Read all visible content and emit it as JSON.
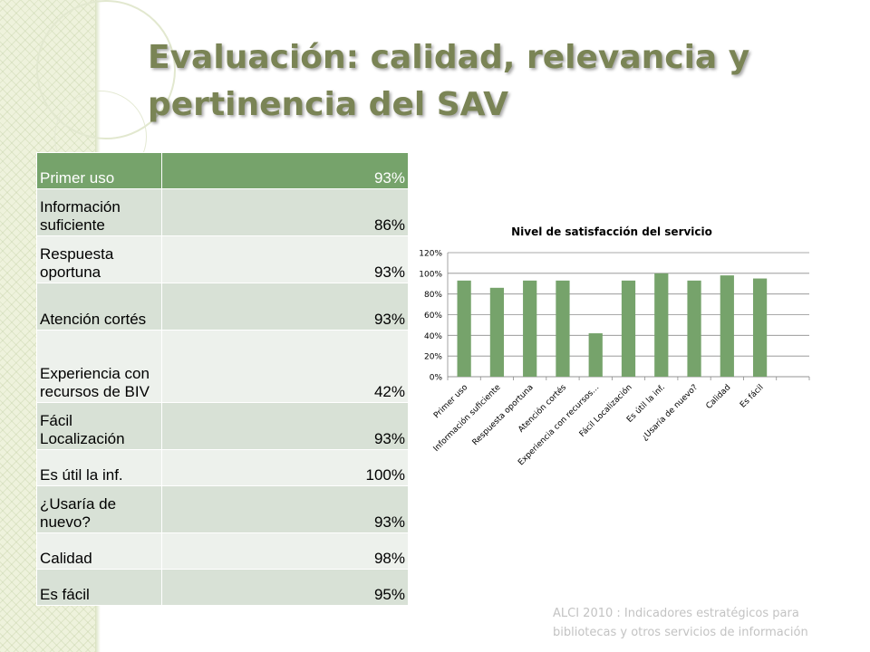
{
  "title": "Evaluación: calidad, relevancia y pertinencia del SAV",
  "footer": "ALCI 2010 : Indicadores estratégicos para bibliotecas y otros servicios de información",
  "colors": {
    "accent": "#76a36b",
    "title": "#7a8455",
    "bar": "#76a36b"
  },
  "table": {
    "rows": [
      {
        "label": "Primer uso",
        "value": "93%"
      },
      {
        "label": "Información suficiente",
        "value": "86%"
      },
      {
        "label": "Respuesta oportuna",
        "value": "93%"
      },
      {
        "label": "Atención cortés",
        "value": "93%"
      },
      {
        "label": "Experiencia con recursos de BIV",
        "value": "42%"
      },
      {
        "label": "Fácil Localización",
        "value": "93%"
      },
      {
        "label": "Es útil la inf.",
        "value": "100%"
      },
      {
        "label": "¿Usaría de nuevo?",
        "value": "93%"
      },
      {
        "label": "Calidad",
        "value": "98%"
      },
      {
        "label": "Es fácil",
        "value": "95%"
      }
    ]
  },
  "chart_data": {
    "type": "bar",
    "title": "Nivel de satisfacción del servicio",
    "categories": [
      "Primer uso",
      "Información suficiente",
      "Respuesta oportuna",
      "Atención cortés",
      "Experiencia con recursos…",
      "Fácil Localización",
      "Es útil la inf.",
      "¿Usaría de nuevo?",
      "Calidad",
      "Es fácil"
    ],
    "values": [
      0.93,
      0.86,
      0.93,
      0.93,
      0.42,
      0.93,
      1.0,
      0.93,
      0.98,
      0.95
    ],
    "ylim": [
      0,
      1.2
    ],
    "yticks": [
      "0%",
      "20%",
      "40%",
      "60%",
      "80%",
      "100%",
      "120%"
    ],
    "grid": true,
    "legend": "none",
    "xlabel": "",
    "ylabel": ""
  }
}
